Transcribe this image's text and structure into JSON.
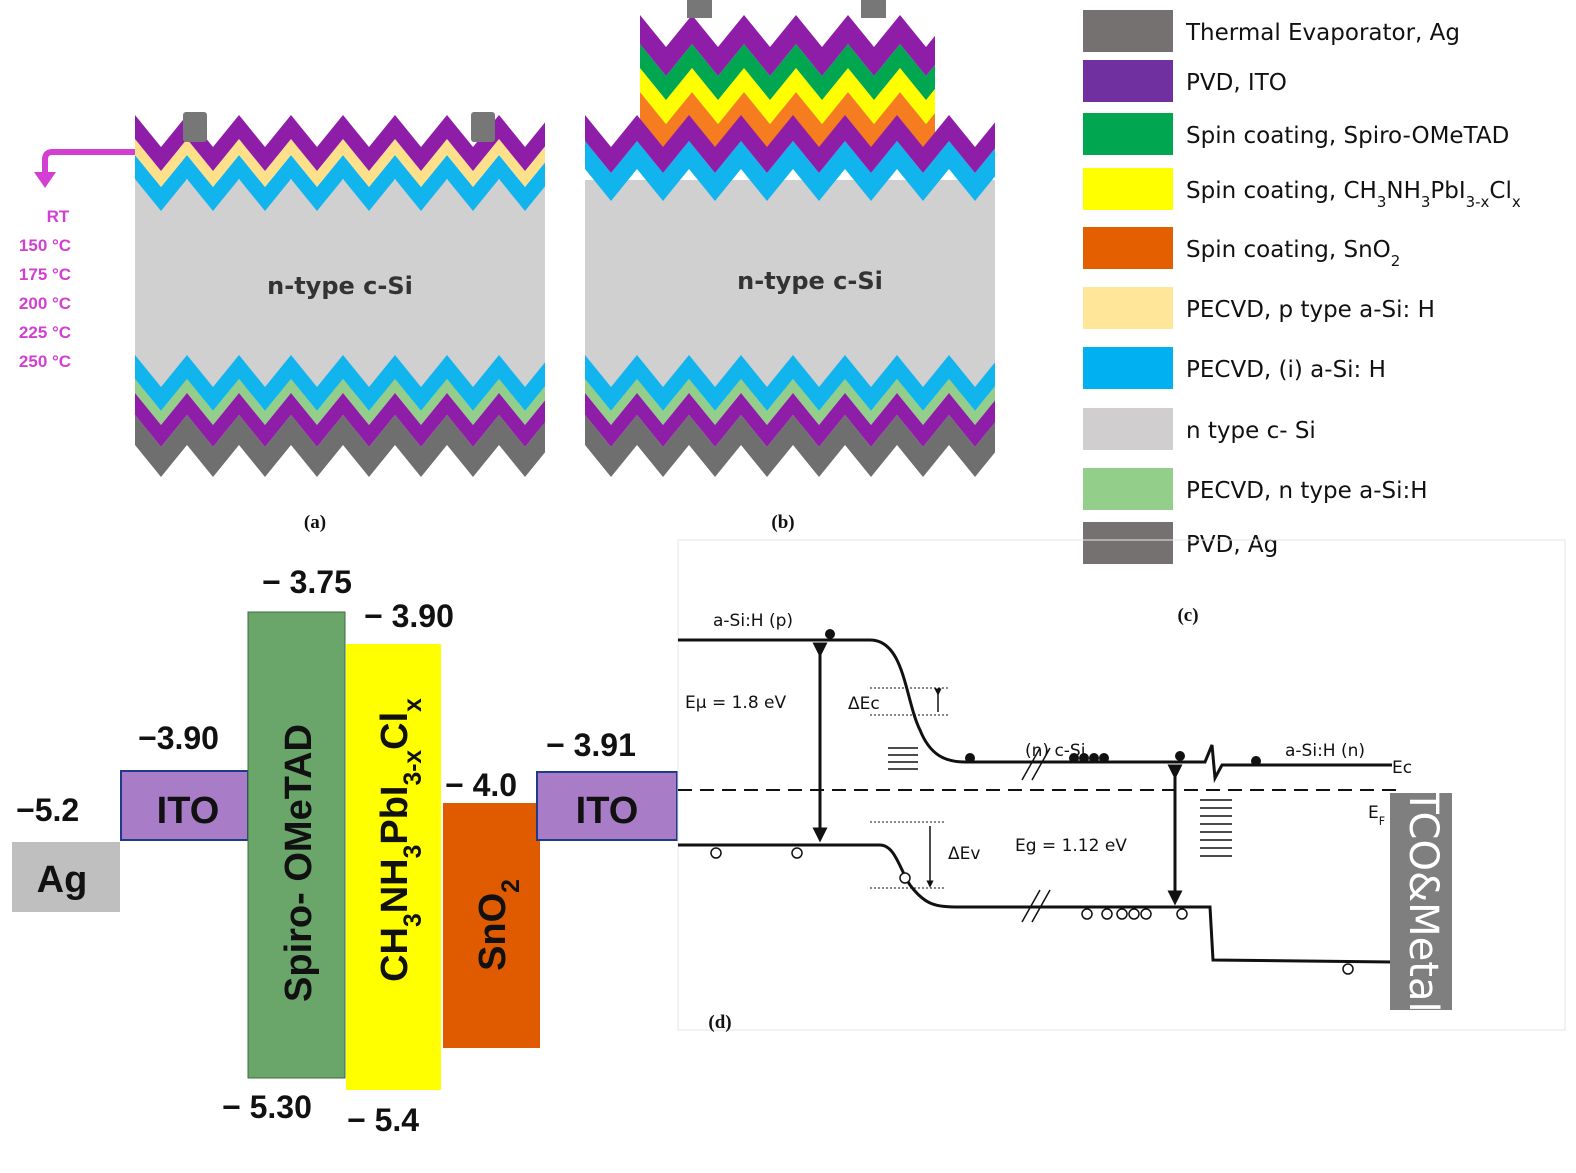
{
  "panel_a": {
    "label": "(a)",
    "substrate": "n-type c-Si",
    "temperatures": [
      "RT",
      "150 °C",
      "175 °C",
      "200 °C",
      "225 °C",
      "250 °C"
    ]
  },
  "panel_b": {
    "label": "(b)",
    "substrate": "n-type c-Si"
  },
  "panel_c": {
    "label": "(c)",
    "legend": [
      {
        "parts": [
          "Thermal Evaporator, Ag"
        ],
        "color": "#767171"
      },
      {
        "parts": [
          "PVD, ITO"
        ],
        "color": "#7030a0"
      },
      {
        "parts": [
          "Spin coating, Spiro-OMeTAD"
        ],
        "color": "#00a650"
      },
      {
        "parts": [
          "Spin coating, CH",
          "3",
          "NH",
          "3",
          "PbI",
          "3-x",
          "Cl",
          "x"
        ],
        "color": "#ffff00"
      },
      {
        "parts": [
          "Spin coating, SnO",
          "2"
        ],
        "color": "#e35f00"
      },
      {
        "parts": [
          "PECVD, p type a-Si: H"
        ],
        "color": "#ffe699"
      },
      {
        "parts": [
          "PECVD, (i) a-Si: H"
        ],
        "color": "#00b0f0"
      },
      {
        "parts": [
          "n type c- Si"
        ],
        "color": "#d0cece"
      },
      {
        "parts": [
          "PECVD, n type a-Si:H"
        ],
        "color": "#93cf8a"
      },
      {
        "parts": [
          "PVD, Ag"
        ],
        "color": "#767171"
      }
    ]
  },
  "energy_levels": {
    "blocks": [
      {
        "parts": [
          "Ag"
        ]
      },
      {
        "parts": [
          "ITO"
        ]
      },
      {
        "parts": [
          "Spiro- OMeTAD"
        ]
      },
      {
        "parts": [
          "CH",
          "3",
          "NH",
          "3",
          "PbI",
          "3-x",
          "Cl",
          "x"
        ]
      },
      {
        "parts": [
          "SnO",
          "2"
        ]
      },
      {
        "parts": [
          "ITO"
        ]
      }
    ],
    "energies": [
      "−5.2",
      "−3.90",
      "− 3.75",
      "− 5.30",
      "− 3.90",
      "− 5.4",
      "− 4.0",
      "− 3.91"
    ]
  },
  "band_diagram": {
    "label": "(d)",
    "p_layer": "a-Si:H (p)",
    "mobility_gap": "Eμ = 1.8 eV",
    "delta_ec": "ΔEc",
    "c_si": "(n) c-Si",
    "n_layer": "a-Si:H (n)",
    "ec": "Ec",
    "ef": [
      "E",
      "F"
    ],
    "delta_ev": "ΔEv",
    "band_gap": "Eg = 1.12 eV",
    "contact": "TCO&Metal"
  }
}
